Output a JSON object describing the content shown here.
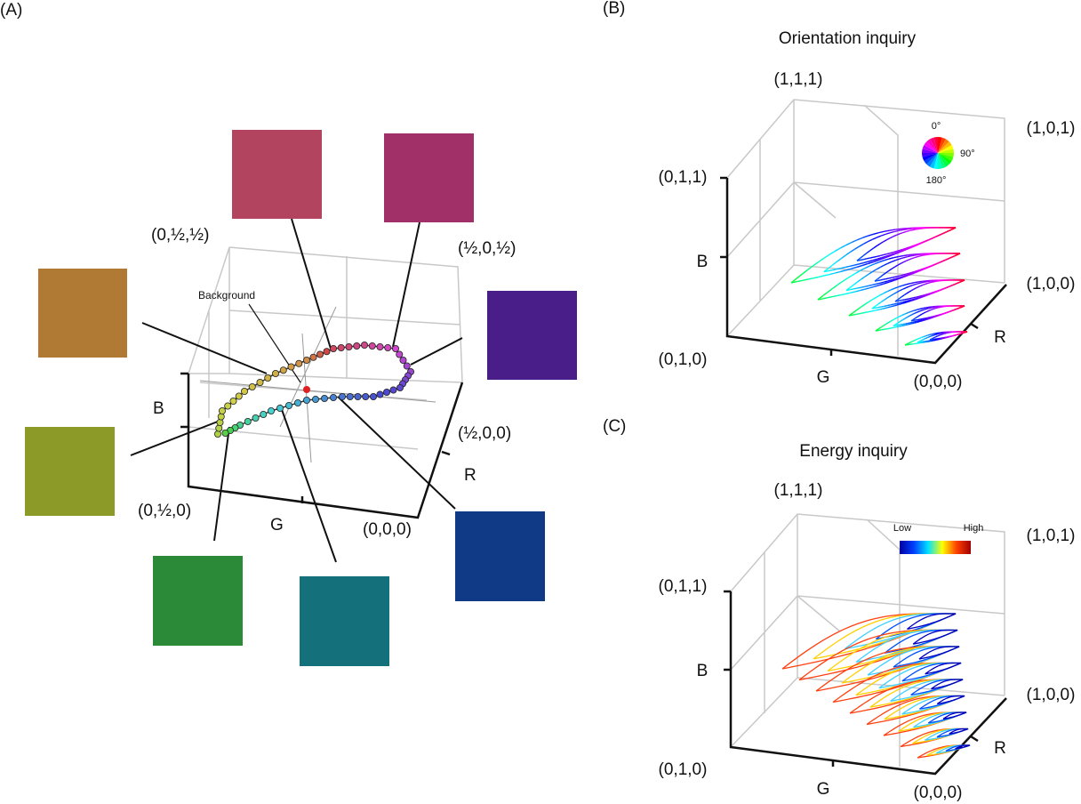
{
  "panel_a": {
    "label": "(A)",
    "annotation": "Background",
    "corners": [
      "(0,½,½)",
      "(½,0,½)",
      "(½,0,0)",
      "(0,½,0)",
      "(0,0,0)"
    ],
    "axes": [
      "B",
      "G",
      "R"
    ]
  },
  "panel_b": {
    "label": "(B)",
    "title": "Orientation inquiry",
    "corners": [
      "(1,1,1)",
      "(1,0,1)",
      "(0,1,1)",
      "(1,0,0)",
      "(0,1,0)",
      "(0,0,0)"
    ],
    "axes": [
      "B",
      "G",
      "R"
    ],
    "wheel_labels": [
      "0°",
      "90°",
      "180°"
    ]
  },
  "panel_c": {
    "label": "(C)",
    "title": "Energy inquiry",
    "corners": [
      "(1,1,1)",
      "(1,0,1)",
      "(0,1,1)",
      "(1,0,0)",
      "(0,1,0)",
      "(0,0,0)"
    ],
    "axes": [
      "B",
      "G",
      "R"
    ],
    "colorbar_labels": [
      "Low",
      "High"
    ]
  }
}
